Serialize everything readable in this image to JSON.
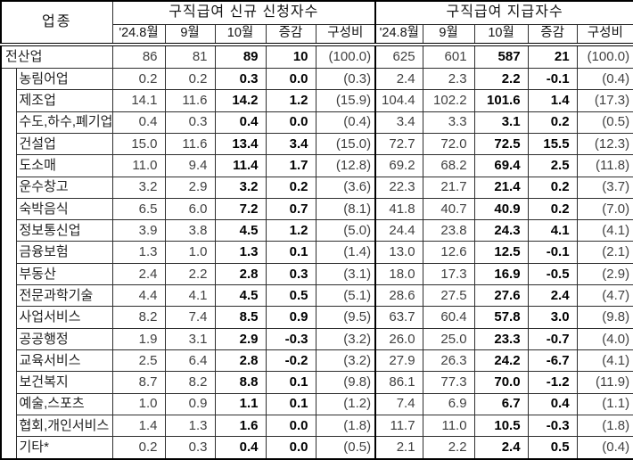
{
  "chart_data": {
    "type": "table",
    "industry_header": "업종",
    "group_headers": [
      "구직급여 신규 신청자수",
      "구직급여 지급자수"
    ],
    "sub_headers": [
      "'24.8월",
      "9월",
      "10월",
      "증감",
      "구성비"
    ],
    "colors": {
      "border": "#000000",
      "regular_text": "#404040",
      "bold_text": "#000000"
    },
    "rows": [
      {
        "label": "전산업",
        "main": true,
        "new": [
          "86",
          "81",
          "89",
          "10",
          "(100.0)"
        ],
        "paid": [
          "625",
          "601",
          "587",
          "21",
          "(100.0)"
        ]
      },
      {
        "label": "농림어업",
        "main": false,
        "new": [
          "0.2",
          "0.2",
          "0.3",
          "0.0",
          "(0.3)"
        ],
        "paid": [
          "2.4",
          "2.3",
          "2.2",
          "-0.1",
          "(0.4)"
        ]
      },
      {
        "label": "제조업",
        "main": false,
        "new": [
          "14.1",
          "11.6",
          "14.2",
          "1.2",
          "(15.9)"
        ],
        "paid": [
          "104.4",
          "102.2",
          "101.6",
          "1.4",
          "(17.3)"
        ]
      },
      {
        "label": "수도,하수,폐기업",
        "main": false,
        "new": [
          "0.4",
          "0.3",
          "0.4",
          "0.0",
          "(0.4)"
        ],
        "paid": [
          "3.4",
          "3.3",
          "3.1",
          "0.2",
          "(0.5)"
        ]
      },
      {
        "label": "건설업",
        "main": false,
        "new": [
          "15.0",
          "11.6",
          "13.4",
          "3.4",
          "(15.0)"
        ],
        "paid": [
          "72.7",
          "72.0",
          "72.5",
          "15.5",
          "(12.3)"
        ]
      },
      {
        "label": "도소매",
        "main": false,
        "new": [
          "11.0",
          "9.4",
          "11.4",
          "1.7",
          "(12.8)"
        ],
        "paid": [
          "69.2",
          "68.2",
          "69.4",
          "2.5",
          "(11.8)"
        ]
      },
      {
        "label": "운수창고",
        "main": false,
        "new": [
          "3.2",
          "2.9",
          "3.2",
          "0.2",
          "(3.6)"
        ],
        "paid": [
          "22.3",
          "21.7",
          "21.4",
          "0.2",
          "(3.7)"
        ]
      },
      {
        "label": "숙박음식",
        "main": false,
        "new": [
          "6.5",
          "6.0",
          "7.2",
          "0.7",
          "(8.1)"
        ],
        "paid": [
          "41.8",
          "40.7",
          "40.9",
          "0.2",
          "(7.0)"
        ]
      },
      {
        "label": "정보통신업",
        "main": false,
        "new": [
          "3.9",
          "3.8",
          "4.5",
          "1.2",
          "(5.0)"
        ],
        "paid": [
          "24.4",
          "23.8",
          "24.3",
          "4.1",
          "(4.1)"
        ]
      },
      {
        "label": "금융보험",
        "main": false,
        "new": [
          "1.3",
          "1.0",
          "1.3",
          "0.1",
          "(1.4)"
        ],
        "paid": [
          "13.0",
          "12.6",
          "12.5",
          "-0.1",
          "(2.1)"
        ]
      },
      {
        "label": "부동산",
        "main": false,
        "new": [
          "2.4",
          "2.2",
          "2.8",
          "0.3",
          "(3.1)"
        ],
        "paid": [
          "18.0",
          "17.3",
          "16.9",
          "-0.5",
          "(2.9)"
        ]
      },
      {
        "label": "전문과학기술",
        "main": false,
        "new": [
          "4.4",
          "4.1",
          "4.5",
          "0.5",
          "(5.1)"
        ],
        "paid": [
          "28.6",
          "27.5",
          "27.6",
          "2.4",
          "(4.7)"
        ]
      },
      {
        "label": "사업서비스",
        "main": false,
        "new": [
          "8.2",
          "7.4",
          "8.5",
          "0.9",
          "(9.5)"
        ],
        "paid": [
          "63.7",
          "60.4",
          "57.8",
          "3.0",
          "(9.8)"
        ]
      },
      {
        "label": "공공행정",
        "main": false,
        "new": [
          "1.9",
          "3.1",
          "2.9",
          "-0.3",
          "(3.2)"
        ],
        "paid": [
          "26.0",
          "25.0",
          "23.3",
          "-0.7",
          "(4.0)"
        ]
      },
      {
        "label": "교육서비스",
        "main": false,
        "new": [
          "2.5",
          "6.4",
          "2.8",
          "-0.2",
          "(3.2)"
        ],
        "paid": [
          "27.9",
          "26.3",
          "24.2",
          "-6.7",
          "(4.1)"
        ]
      },
      {
        "label": "보건복지",
        "main": false,
        "new": [
          "8.7",
          "8.2",
          "8.8",
          "0.1",
          "(9.8)"
        ],
        "paid": [
          "86.1",
          "77.3",
          "70.0",
          "-1.2",
          "(11.9)"
        ]
      },
      {
        "label": "예술,스포츠",
        "main": false,
        "new": [
          "1.0",
          "0.9",
          "1.1",
          "0.1",
          "(1.2)"
        ],
        "paid": [
          "7.4",
          "6.9",
          "6.7",
          "0.4",
          "(1.1)"
        ]
      },
      {
        "label": "협회,개인서비스",
        "main": false,
        "new": [
          "1.4",
          "1.3",
          "1.6",
          "0.0",
          "(1.8)"
        ],
        "paid": [
          "11.7",
          "11.0",
          "10.5",
          "-0.3",
          "(1.8)"
        ]
      },
      {
        "label": "기타*",
        "main": false,
        "new": [
          "0.2",
          "0.3",
          "0.4",
          "0.0",
          "(0.5)"
        ],
        "paid": [
          "2.1",
          "2.2",
          "2.4",
          "0.5",
          "(0.4)"
        ]
      }
    ]
  }
}
